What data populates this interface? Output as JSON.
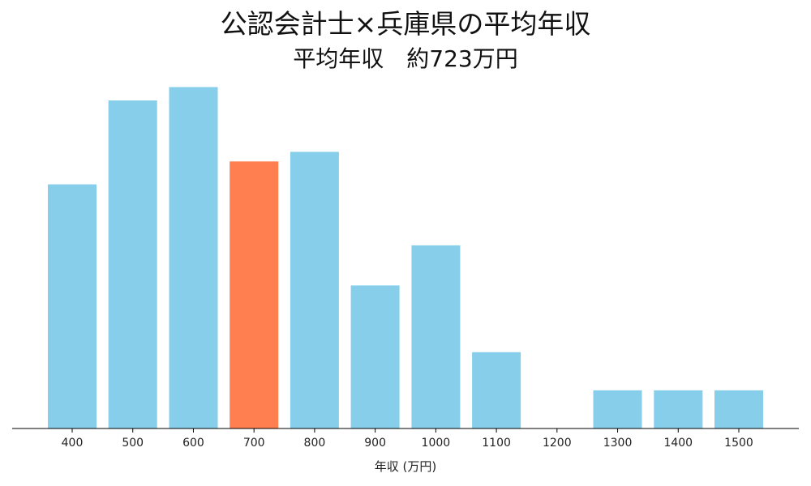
{
  "chart_data": {
    "type": "bar",
    "title": "公認会計士×兵庫県の平均年収",
    "subtitle": "平均年収　約723万円",
    "xlabel": "年収 (万円)",
    "ylabel": "",
    "categories": [
      "400",
      "500",
      "600",
      "700",
      "800",
      "900",
      "1000",
      "1100",
      "1200",
      "1300",
      "1400",
      "1500"
    ],
    "values": [
      12.8,
      17.2,
      17.9,
      14.0,
      14.5,
      7.5,
      9.6,
      4.0,
      0,
      2.0,
      2.0,
      2.0
    ],
    "highlight_category": "700",
    "ylim": [
      0,
      18.6
    ],
    "grid": false,
    "legend": "none",
    "colors": {
      "bar": "#87CEEB",
      "highlight": "#FF7F50",
      "axis": "#000000"
    }
  }
}
